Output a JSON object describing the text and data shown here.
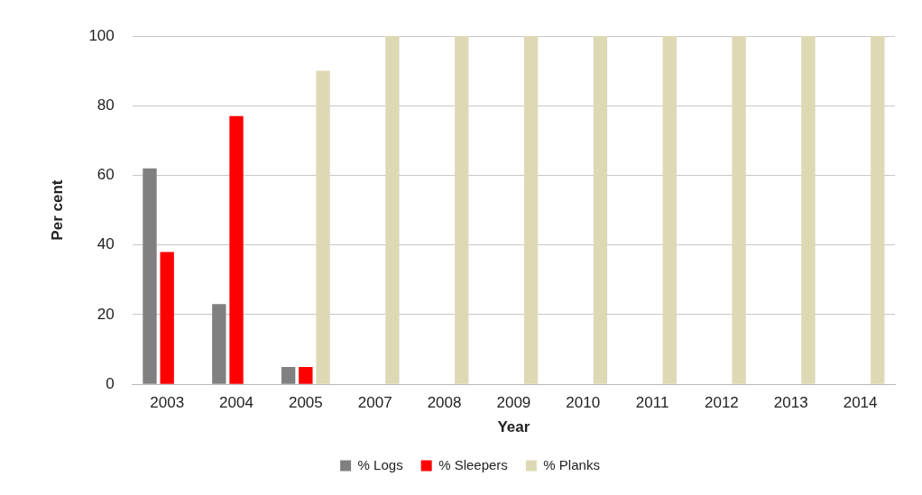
{
  "chart_data": {
    "type": "bar",
    "xlabel": "Year",
    "ylabel": "Per cent",
    "categories": [
      "2003",
      "2004",
      "2005",
      "2007",
      "2008",
      "2009",
      "2010",
      "2011",
      "2012",
      "2013",
      "2014"
    ],
    "series": [
      {
        "name": "% Logs",
        "color": "#808080",
        "values": [
          62,
          23,
          5,
          0,
          0,
          0,
          0,
          0,
          0,
          0,
          0
        ]
      },
      {
        "name": "% Sleepers",
        "color": "#ff0000",
        "values": [
          38,
          77,
          5,
          0,
          0,
          0,
          0,
          0,
          0,
          0,
          0
        ]
      },
      {
        "name": "% Planks",
        "color": "#ddd9b4",
        "values": [
          0,
          0,
          90,
          100,
          100,
          100,
          100,
          100,
          100,
          100,
          100
        ]
      }
    ],
    "ylim": [
      0,
      100
    ],
    "yticks": [
      0,
      20,
      40,
      60,
      80,
      100
    ],
    "grid": "y",
    "legend": "bottom"
  }
}
